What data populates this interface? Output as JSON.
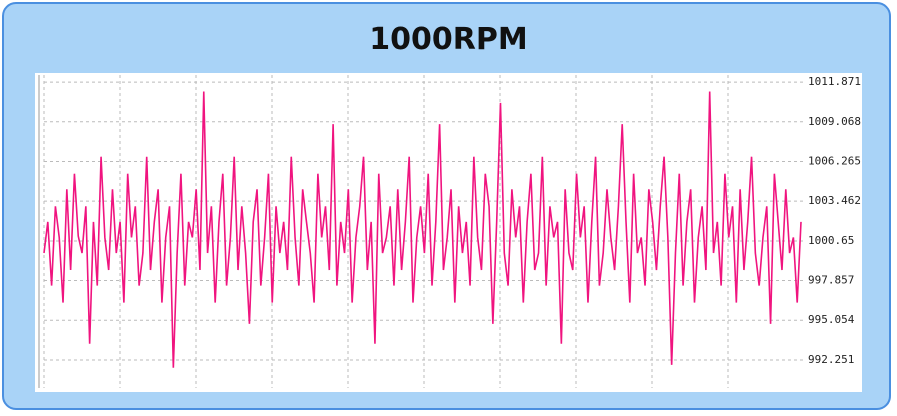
{
  "chart_data": {
    "type": "line",
    "title": "1000RPM",
    "values": [
      999.8,
      1002.0,
      997.5,
      1003.1,
      1000.9,
      996.3,
      1004.3,
      998.6,
      1005.4,
      1001.0,
      999.8,
      1003.1,
      993.4,
      1002.0,
      997.5,
      1006.6,
      1000.9,
      998.6,
      1004.3,
      999.8,
      1002.0,
      996.3,
      1005.4,
      1000.9,
      1003.1,
      997.5,
      999.8,
      1006.6,
      998.6,
      1002.0,
      1004.3,
      996.3,
      1000.9,
      1003.1,
      991.7,
      999.8,
      1005.4,
      997.5,
      1002.0,
      1000.9,
      1004.3,
      998.6,
      1011.2,
      999.8,
      1003.1,
      996.3,
      1002.0,
      1005.4,
      997.5,
      1000.9,
      1006.6,
      998.6,
      1003.1,
      999.8,
      994.8,
      1002.0,
      1004.3,
      997.5,
      1000.9,
      1005.4,
      996.3,
      1003.1,
      999.8,
      1002.0,
      998.6,
      1006.6,
      1000.9,
      997.5,
      1004.3,
      1002.0,
      999.8,
      996.3,
      1005.4,
      1000.9,
      1003.1,
      998.6,
      1008.9,
      997.5,
      1002.0,
      999.8,
      1004.3,
      996.3,
      1000.9,
      1003.1,
      1006.6,
      998.6,
      1002.0,
      993.4,
      1005.4,
      999.8,
      1000.9,
      1003.1,
      997.5,
      1004.3,
      998.6,
      1002.0,
      1006.6,
      996.3,
      1000.9,
      1003.1,
      999.8,
      1005.4,
      997.5,
      1002.0,
      1008.9,
      998.6,
      1000.9,
      1004.3,
      996.3,
      1003.1,
      999.8,
      1002.0,
      997.5,
      1006.6,
      1000.9,
      998.6,
      1005.4,
      1003.1,
      994.8,
      1002.0,
      1010.4,
      999.8,
      997.5,
      1004.3,
      1000.9,
      1003.1,
      996.3,
      1002.0,
      1005.4,
      998.6,
      999.8,
      1006.6,
      997.5,
      1003.1,
      1000.9,
      1002.0,
      993.4,
      1004.3,
      999.8,
      998.6,
      1005.4,
      1000.9,
      1003.1,
      996.3,
      1002.0,
      1006.6,
      997.5,
      999.8,
      1004.3,
      1000.9,
      998.6,
      1003.1,
      1008.9,
      1002.0,
      996.3,
      1005.4,
      999.8,
      1000.9,
      997.5,
      1004.3,
      1002.0,
      998.6,
      1003.1,
      1006.6,
      1000.9,
      991.9,
      999.8,
      1005.4,
      997.5,
      1002.0,
      1004.3,
      996.3,
      1000.9,
      1003.1,
      998.6,
      1011.2,
      999.8,
      1002.0,
      997.5,
      1005.4,
      1000.9,
      1003.1,
      996.3,
      1004.3,
      998.6,
      1002.0,
      1006.6,
      999.8,
      997.5,
      1000.9,
      1003.1,
      994.8,
      1005.4,
      1002.0,
      998.6,
      1004.3,
      999.8,
      1000.9,
      996.3,
      1002.0
    ],
    "color": "#f0147f",
    "ylim": [
      990.27,
      1012.37
    ],
    "yticks": [
      992.251,
      995.054,
      997.857,
      1000.65,
      1003.462,
      1006.265,
      1009.068,
      1011.871
    ],
    "grid": true
  }
}
